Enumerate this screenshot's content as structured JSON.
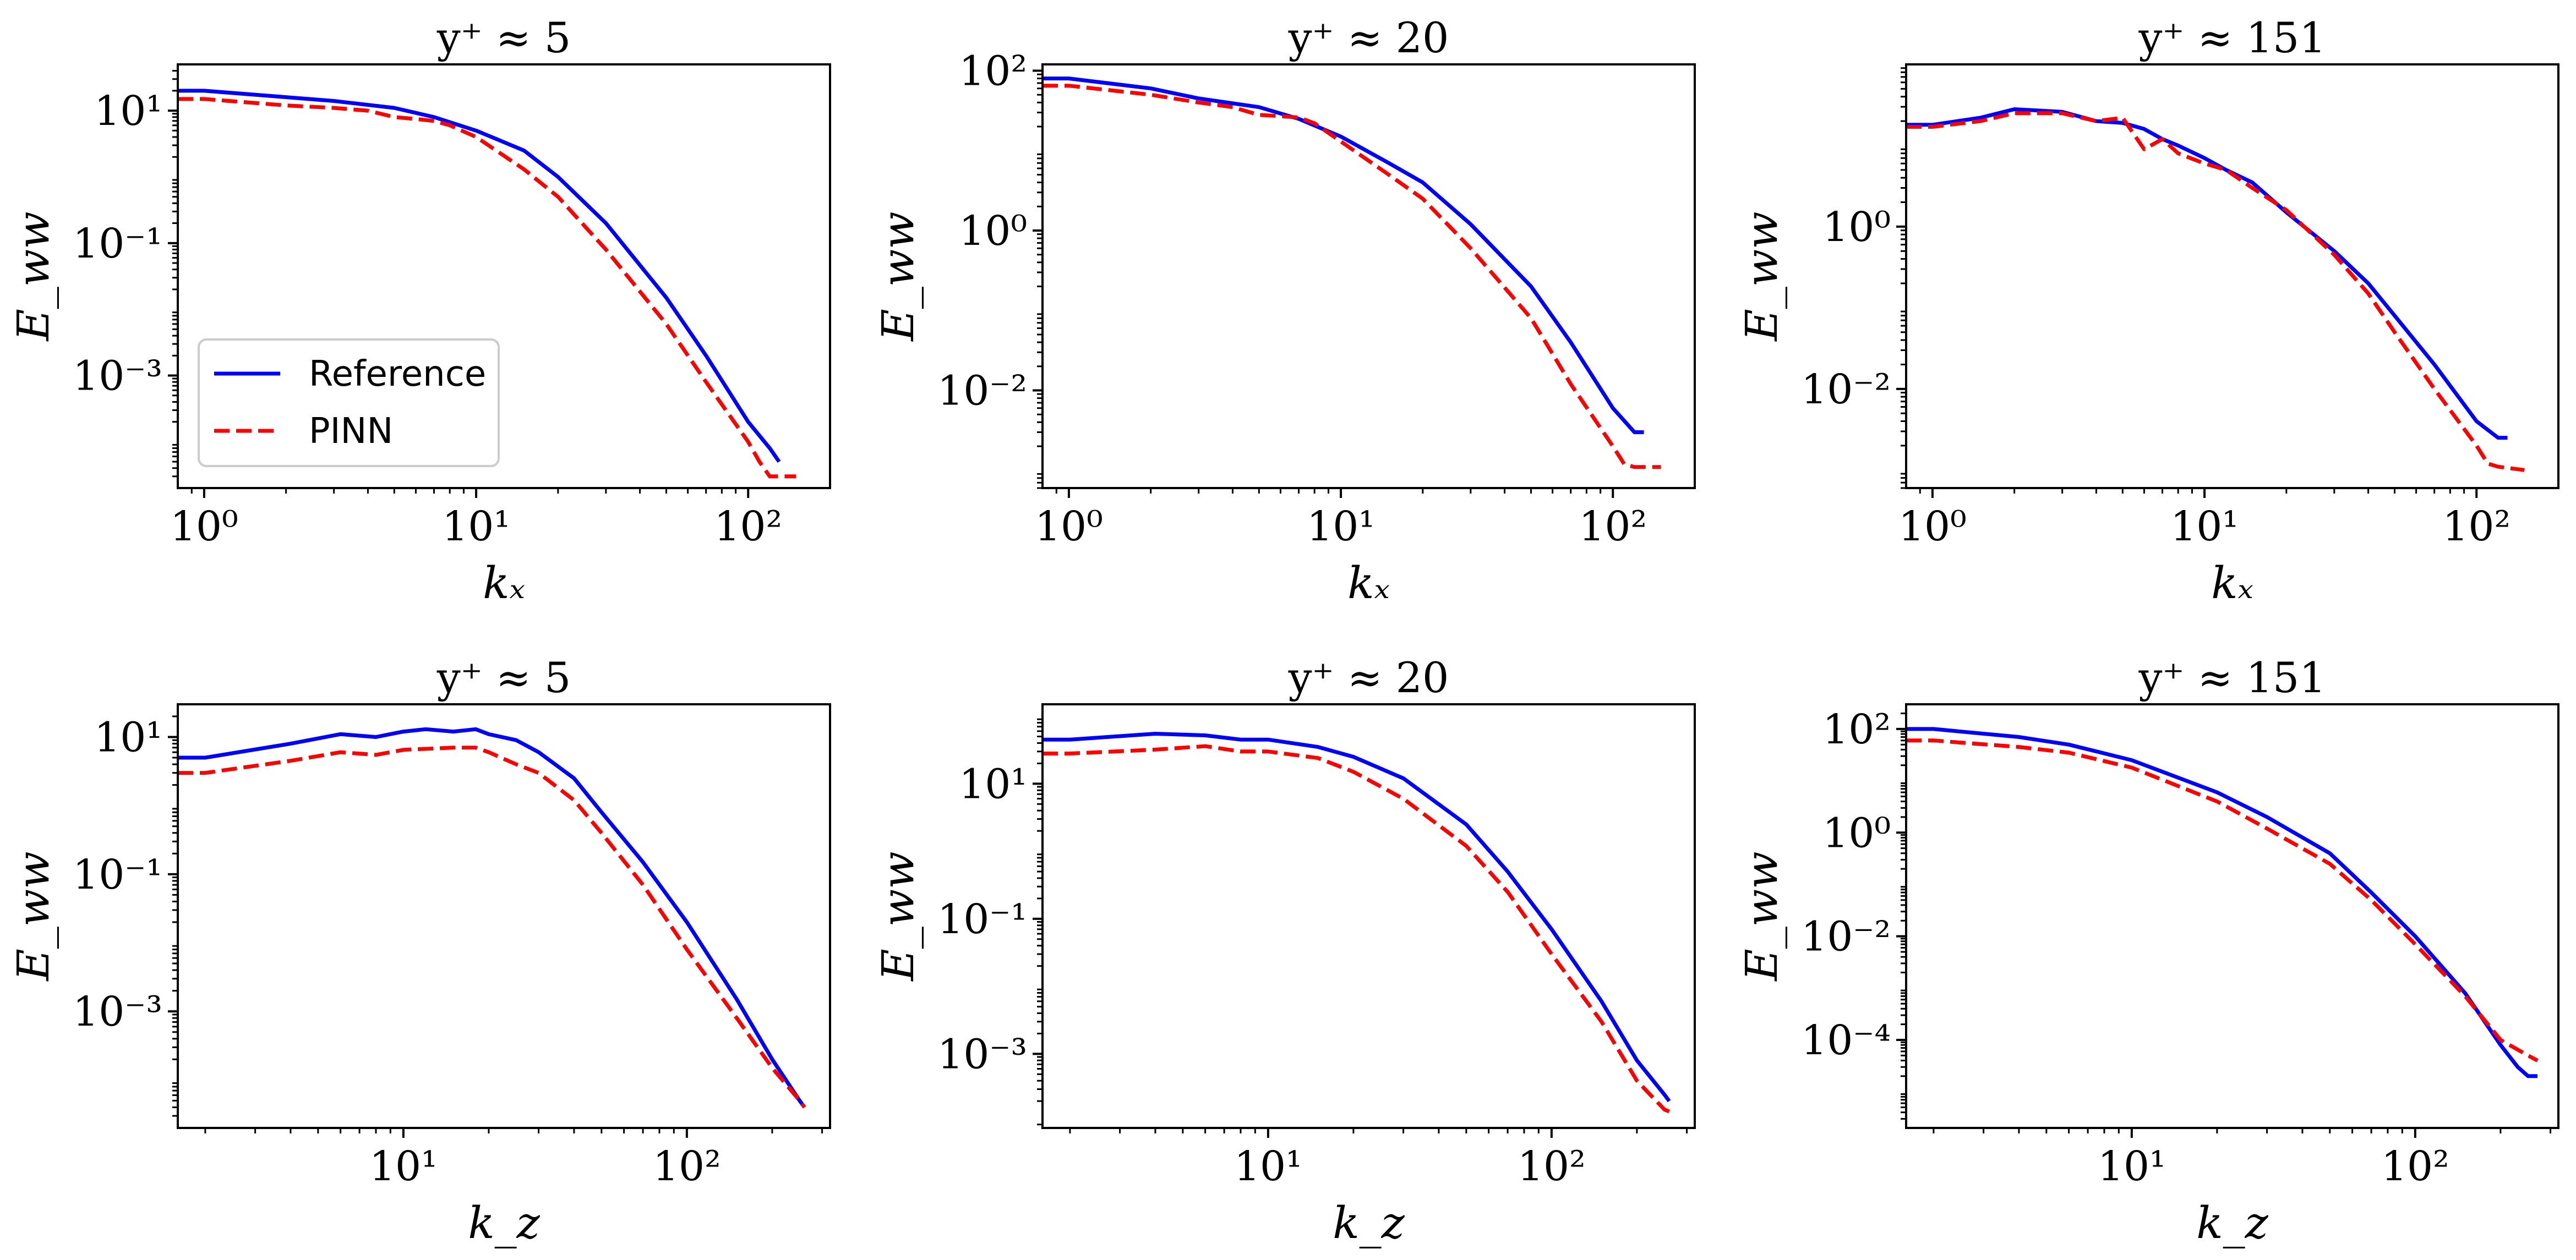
{
  "colors": {
    "reference": "#0000ff",
    "pinn": "#ff0000",
    "axes": "#000000"
  },
  "legend": {
    "reference": "Reference",
    "pinn": "PINN",
    "location": "lower-left of first panel"
  },
  "chart_data": [
    {
      "type": "line",
      "scale": "log-log",
      "title": "y⁺ ≈ 5",
      "xlabel": "kₓ",
      "ylabel": "E_ww",
      "xlim": [
        0.8,
        200
      ],
      "ylim": [
        2e-05,
        50
      ],
      "xticks": [
        {
          "v": 1,
          "label": "10⁰"
        },
        {
          "v": 10,
          "label": "10¹"
        },
        {
          "v": 100,
          "label": "10²"
        }
      ],
      "yticks": [
        {
          "v": 10,
          "label": "10¹"
        },
        {
          "v": 0.1,
          "label": "10⁻¹"
        },
        {
          "v": 0.001,
          "label": "10⁻³"
        }
      ],
      "show_legend": true,
      "series": [
        {
          "name": "Reference",
          "style": "solid",
          "x": [
            0.8,
            1,
            2,
            3,
            5,
            7,
            10,
            15,
            20,
            30,
            50,
            70,
            100,
            120,
            130
          ],
          "y": [
            20,
            20,
            16,
            14,
            11,
            8,
            5,
            2.5,
            1.0,
            0.2,
            0.015,
            0.002,
            0.0002,
            8e-05,
            5e-05
          ]
        },
        {
          "name": "PINN",
          "style": "dashed",
          "x": [
            0.8,
            1,
            2,
            3,
            4,
            5,
            6,
            7,
            8,
            10,
            15,
            20,
            30,
            50,
            70,
            100,
            110,
            120,
            150
          ],
          "y": [
            15,
            15,
            12,
            11,
            10,
            8,
            7.5,
            7,
            6,
            4,
            1.3,
            0.5,
            0.08,
            0.006,
            0.0008,
            0.0001,
            5e-05,
            3e-05,
            3e-05
          ]
        }
      ]
    },
    {
      "type": "line",
      "scale": "log-log",
      "title": "y⁺ ≈ 20",
      "xlabel": "kₓ",
      "ylabel": "E_ww",
      "xlim": [
        0.8,
        200
      ],
      "ylim": [
        0.0006,
        120
      ],
      "xticks": [
        {
          "v": 1,
          "label": "10⁰"
        },
        {
          "v": 10,
          "label": "10¹"
        },
        {
          "v": 100,
          "label": "10²"
        }
      ],
      "yticks": [
        {
          "v": 100,
          "label": "10²"
        },
        {
          "v": 1,
          "label": "10⁰"
        },
        {
          "v": 0.01,
          "label": "10⁻²"
        }
      ],
      "show_legend": false,
      "series": [
        {
          "name": "Reference",
          "style": "solid",
          "x": [
            0.8,
            1,
            2,
            3,
            5,
            7,
            10,
            15,
            20,
            30,
            50,
            70,
            100,
            120,
            130
          ],
          "y": [
            80,
            80,
            60,
            45,
            35,
            25,
            15,
            7,
            4,
            1.2,
            0.2,
            0.04,
            0.006,
            0.003,
            0.003
          ]
        },
        {
          "name": "PINN",
          "style": "dashed",
          "x": [
            0.8,
            1,
            2,
            3,
            4,
            5,
            6,
            7,
            8,
            10,
            15,
            20,
            30,
            50,
            70,
            100,
            110,
            120,
            150
          ],
          "y": [
            65,
            65,
            50,
            40,
            35,
            28,
            27,
            26,
            22,
            13,
            5,
            2.5,
            0.6,
            0.08,
            0.012,
            0.002,
            0.0012,
            0.0011,
            0.0011
          ]
        }
      ]
    },
    {
      "type": "line",
      "scale": "log-log",
      "title": "y⁺ ≈ 151",
      "xlabel": "kₓ",
      "ylabel": "E_ww",
      "xlim": [
        0.8,
        200
      ],
      "ylim": [
        0.0006,
        100
      ],
      "xticks": [
        {
          "v": 1,
          "label": "10⁰"
        },
        {
          "v": 10,
          "label": "10¹"
        },
        {
          "v": 100,
          "label": "10²"
        }
      ],
      "yticks": [
        {
          "v": 1,
          "label": "10⁰"
        },
        {
          "v": 0.01,
          "label": "10⁻²"
        }
      ],
      "show_legend": false,
      "series": [
        {
          "name": "Reference",
          "style": "solid",
          "x": [
            0.8,
            1,
            1.5,
            2,
            3,
            4,
            5,
            6,
            7,
            8,
            10,
            12,
            15,
            20,
            30,
            40,
            50,
            70,
            100,
            120,
            130
          ],
          "y": [
            18,
            18,
            22,
            28,
            26,
            20,
            19,
            16,
            12,
            10,
            7,
            5,
            3.5,
            1.5,
            0.5,
            0.2,
            0.08,
            0.02,
            0.004,
            0.0025,
            0.0025
          ]
        },
        {
          "name": "PINN",
          "style": "dashed",
          "x": [
            0.8,
            1,
            1.5,
            2,
            3,
            4,
            5,
            6,
            7,
            8,
            10,
            12,
            15,
            20,
            30,
            40,
            50,
            70,
            100,
            110,
            120,
            150
          ],
          "y": [
            17,
            17,
            20,
            25,
            25,
            20,
            22,
            9,
            12,
            8,
            6,
            5,
            3,
            1.6,
            0.45,
            0.15,
            0.05,
            0.01,
            0.002,
            0.0012,
            0.0011,
            0.001
          ]
        }
      ]
    },
    {
      "type": "line",
      "scale": "log-log",
      "title": "y⁺ ≈ 5",
      "xlabel": "k_z",
      "ylabel": "E_ww",
      "xlim": [
        1.6,
        320
      ],
      "ylim": [
        2e-05,
        30
      ],
      "xticks": [
        {
          "v": 10,
          "label": "10¹"
        },
        {
          "v": 100,
          "label": "10²"
        }
      ],
      "yticks": [
        {
          "v": 10,
          "label": "10¹"
        },
        {
          "v": 0.1,
          "label": "10⁻¹"
        },
        {
          "v": 0.001,
          "label": "10⁻³"
        }
      ],
      "show_legend": false,
      "series": [
        {
          "name": "Reference",
          "style": "solid",
          "x": [
            1.6,
            2,
            4,
            6,
            8,
            10,
            12,
            15,
            18,
            20,
            25,
            30,
            40,
            50,
            70,
            100,
            150,
            200,
            250,
            260
          ],
          "y": [
            5,
            5,
            8,
            11,
            10,
            12,
            13,
            12,
            13,
            11,
            9,
            6,
            2.5,
            0.8,
            0.15,
            0.02,
            0.0015,
            0.0002,
            5e-05,
            4e-05
          ]
        },
        {
          "name": "PINN",
          "style": "dashed",
          "x": [
            1.6,
            2,
            4,
            6,
            8,
            10,
            15,
            18,
            20,
            25,
            30,
            40,
            50,
            70,
            100,
            150,
            200,
            250,
            260
          ],
          "y": [
            3,
            3,
            4.5,
            6,
            5.5,
            6.5,
            7,
            7,
            6,
            4,
            3,
            1.2,
            0.4,
            0.07,
            0.008,
            0.0008,
            0.00015,
            5e-05,
            4e-05
          ]
        }
      ]
    },
    {
      "type": "line",
      "scale": "log-log",
      "title": "y⁺ ≈ 20",
      "xlabel": "k_z",
      "ylabel": "E_ww",
      "xlim": [
        1.6,
        320
      ],
      "ylim": [
        8e-05,
        150
      ],
      "xticks": [
        {
          "v": 10,
          "label": "10¹"
        },
        {
          "v": 100,
          "label": "10²"
        }
      ],
      "yticks": [
        {
          "v": 10,
          "label": "10¹"
        },
        {
          "v": 0.1,
          "label": "10⁻¹"
        },
        {
          "v": 0.001,
          "label": "10⁻³"
        }
      ],
      "show_legend": false,
      "series": [
        {
          "name": "Reference",
          "style": "solid",
          "x": [
            1.6,
            2,
            4,
            6,
            8,
            10,
            15,
            20,
            30,
            50,
            70,
            100,
            150,
            200,
            250,
            260
          ],
          "y": [
            45,
            45,
            55,
            52,
            45,
            45,
            35,
            25,
            12,
            2.5,
            0.5,
            0.07,
            0.006,
            0.0008,
            0.00025,
            0.0002
          ]
        },
        {
          "name": "PINN",
          "style": "dashed",
          "x": [
            1.6,
            2,
            4,
            6,
            8,
            10,
            15,
            20,
            30,
            50,
            70,
            100,
            150,
            200,
            250,
            260
          ],
          "y": [
            28,
            28,
            32,
            36,
            30,
            30,
            24,
            15,
            6,
            1.2,
            0.25,
            0.03,
            0.003,
            0.0004,
            0.00015,
            0.00014
          ]
        }
      ]
    },
    {
      "type": "line",
      "scale": "log-log",
      "title": "y⁺ ≈ 151",
      "xlabel": "k_z",
      "ylabel": "E_ww",
      "xlim": [
        1.6,
        320
      ],
      "ylim": [
        2e-06,
        300
      ],
      "xticks": [
        {
          "v": 10,
          "label": "10¹"
        },
        {
          "v": 100,
          "label": "10²"
        }
      ],
      "yticks": [
        {
          "v": 100,
          "label": "10²"
        },
        {
          "v": 1,
          "label": "10⁰"
        },
        {
          "v": 0.01,
          "label": "10⁻²"
        },
        {
          "v": 0.0001,
          "label": "10⁻⁴"
        }
      ],
      "show_legend": false,
      "series": [
        {
          "name": "Reference",
          "style": "solid",
          "x": [
            1.6,
            2,
            4,
            6,
            10,
            20,
            30,
            50,
            70,
            100,
            150,
            200,
            230,
            250,
            270
          ],
          "y": [
            100,
            100,
            70,
            50,
            25,
            6,
            2,
            0.4,
            0.07,
            0.01,
            0.0008,
            8e-05,
            3e-05,
            2e-05,
            2e-05
          ]
        },
        {
          "name": "PINN",
          "style": "dashed",
          "x": [
            1.6,
            2,
            4,
            6,
            10,
            20,
            30,
            50,
            70,
            100,
            150,
            200,
            250,
            270
          ],
          "y": [
            60,
            60,
            45,
            35,
            18,
            4,
            1.2,
            0.25,
            0.05,
            0.007,
            0.0007,
            0.0001,
            5e-05,
            4e-05
          ]
        }
      ]
    }
  ]
}
